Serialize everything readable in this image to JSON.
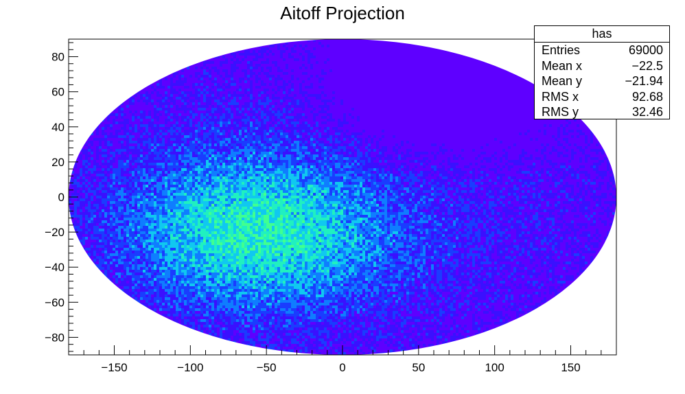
{
  "colors": {
    "background": "#ffffff",
    "axis": "#000000",
    "palette": [
      "#5e00ff",
      "#3a10ff",
      "#1a3cff",
      "#0f7dff",
      "#10c8f0",
      "#20f0c0",
      "#40ff90"
    ]
  },
  "chart_data": {
    "type": "heatmap",
    "title": "Aitoff Projection",
    "projection": "aitoff",
    "xlim": [
      -180,
      180
    ],
    "ylim": [
      -90,
      90
    ],
    "x_ticks": [
      -150,
      -100,
      -50,
      0,
      50,
      100,
      150
    ],
    "x_tick_labels": [
      "−150",
      "−100",
      "−50",
      "0",
      "50",
      "100",
      "150"
    ],
    "y_ticks": [
      -80,
      -60,
      -40,
      -20,
      0,
      20,
      40,
      60,
      80
    ],
    "y_tick_labels": [
      "−80",
      "−60",
      "−40",
      "−20",
      "0",
      "20",
      "40",
      "60",
      "80"
    ],
    "grid": false,
    "stats": {
      "name": "has",
      "rows": [
        {
          "label": "Entries",
          "value": "69000"
        },
        {
          "label": "Mean x",
          "value": "−22.5"
        },
        {
          "label": "Mean y",
          "value": "−21.94"
        },
        {
          "label": "RMS x",
          "value": "92.68"
        },
        {
          "label": "RMS y",
          "value": "32.46"
        }
      ]
    },
    "density_regions": [
      {
        "description": "dense center",
        "x": -60,
        "y": -20
      },
      {
        "description": "sparse",
        "x": 60,
        "y": 60
      }
    ]
  }
}
